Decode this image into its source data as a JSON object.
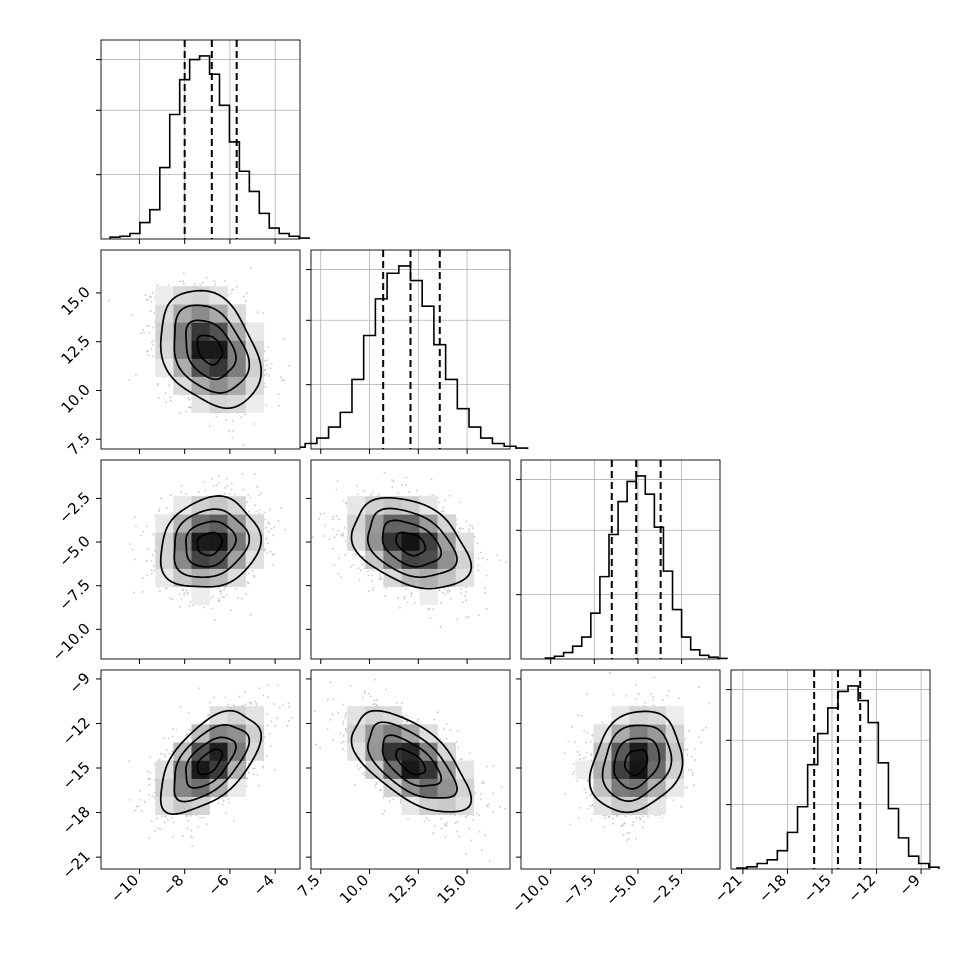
{
  "chart_data": {
    "type": "corner",
    "title": "",
    "parameters": [
      {
        "label": "",
        "mean": -6.9,
        "sd": 1.1,
        "ylim": [
          0,
          1.0
        ],
        "quantiles": [
          -8.0,
          -6.8,
          -5.7
        ],
        "axis_ticks": [
          -10,
          -8,
          -6,
          -4
        ],
        "tick_labels": [
          "−10",
          "−8",
          "−6",
          "−4"
        ],
        "range": [
          -11.7,
          -2.9
        ]
      },
      {
        "label": "",
        "mean": 12.1,
        "sd": 1.5,
        "ylim": [
          0,
          1.0
        ],
        "quantiles": [
          10.7,
          12.1,
          13.6
        ],
        "axis_ticks": [
          7.5,
          10.0,
          12.5,
          15.0
        ],
        "tick_labels": [
          "7.5",
          "10.0",
          "12.5",
          "15.0"
        ],
        "range": [
          7.0,
          17.2
        ]
      },
      {
        "label": "",
        "mean": -5.1,
        "sd": 1.3,
        "ylim": [
          0,
          1.0
        ],
        "quantiles": [
          -6.5,
          -5.1,
          -3.7
        ],
        "axis_ticks": [
          -10.0,
          -7.5,
          -5.0,
          -2.5
        ],
        "tick_labels": [
          "−10.0",
          "−7.5",
          "−5.0",
          "−2.5"
        ],
        "range": [
          -11.7,
          -0.3
        ]
      },
      {
        "label": "",
        "mean": -14.6,
        "sd": 1.7,
        "ylim": [
          0,
          1.0
        ],
        "quantiles": [
          -16.2,
          -14.6,
          -13.1
        ],
        "axis_ticks": [
          -21,
          -18,
          -15,
          -12,
          -9
        ],
        "tick_labels": [
          "−21",
          "−18",
          "−15",
          "−12",
          "−9"
        ],
        "range": [
          -21.8,
          -8.4
        ]
      }
    ],
    "diagonal_histograms": [
      {
        "param": 0,
        "bins": 20,
        "values": [
          0.01,
          0.015,
          0.03,
          0.09,
          0.16,
          0.39,
          0.68,
          0.87,
          0.98,
          1.0,
          0.9,
          0.73,
          0.53,
          0.37,
          0.26,
          0.14,
          0.06,
          0.03,
          0.015,
          0.005
        ]
      },
      {
        "param": 1,
        "bins": 20,
        "values": [
          0.01,
          0.03,
          0.06,
          0.12,
          0.2,
          0.38,
          0.62,
          0.82,
          0.96,
          1.0,
          0.92,
          0.78,
          0.57,
          0.38,
          0.22,
          0.12,
          0.06,
          0.03,
          0.015,
          0.005
        ]
      },
      {
        "param": 2,
        "bins": 20,
        "values": [
          0.005,
          0.015,
          0.035,
          0.07,
          0.12,
          0.25,
          0.45,
          0.68,
          0.86,
          0.97,
          1.0,
          0.9,
          0.72,
          0.48,
          0.27,
          0.12,
          0.05,
          0.02,
          0.01,
          0.003
        ]
      },
      {
        "param": 3,
        "bins": 20,
        "values": [
          0.005,
          0.012,
          0.03,
          0.05,
          0.1,
          0.2,
          0.34,
          0.57,
          0.74,
          0.88,
          0.97,
          1.0,
          0.92,
          0.8,
          0.58,
          0.33,
          0.17,
          0.07,
          0.03,
          0.01
        ]
      }
    ],
    "pair_correlations": [
      {
        "x": 0,
        "y": 1,
        "rho": -0.3
      },
      {
        "x": 0,
        "y": 2,
        "rho": 0.15
      },
      {
        "x": 1,
        "y": 2,
        "rho": -0.35
      },
      {
        "x": 0,
        "y": 3,
        "rho": 0.55
      },
      {
        "x": 1,
        "y": 3,
        "rho": -0.6
      },
      {
        "x": 2,
        "y": 3,
        "rho": 0.2
      }
    ],
    "contour_levels_sigma": [
      0.5,
      1.0,
      1.5,
      2.0
    ],
    "grid": true
  }
}
